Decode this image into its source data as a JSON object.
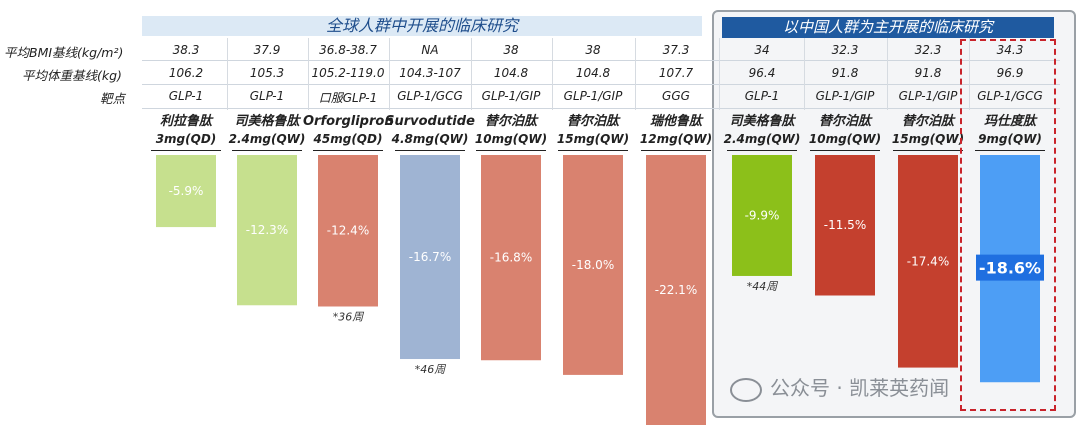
{
  "headers": {
    "global": "全球人群中开展的临床研究",
    "china": "以中国人群为主开展的临床研究"
  },
  "row_labels": {
    "bmi": "平均BMI基线(kg/m²)",
    "weight": "平均体重基线(kg)",
    "target": "靶点"
  },
  "columns": [
    {
      "drug": "利拉鲁肽",
      "dose": "3mg(QD)",
      "bmi": "38.3",
      "weight": "106.2",
      "target": "GLP-1"
    },
    {
      "drug": "司美格鲁肽",
      "dose": "2.4mg(QW)",
      "bmi": "37.9",
      "weight": "105.3",
      "target": "GLP-1"
    },
    {
      "drug": "Orforglipron",
      "dose": "45mg(QD)",
      "bmi": "36.8-38.7",
      "weight": "105.2-119.0",
      "target": "口服GLP-1"
    },
    {
      "drug": "Survodutide",
      "dose": "4.8mg(QW)",
      "bmi": "NA",
      "weight": "104.3-107",
      "target": "GLP-1/GCG"
    },
    {
      "drug": "替尔泊肽",
      "dose": "10mg(QW)",
      "bmi": "38",
      "weight": "104.8",
      "target": "GLP-1/GIP"
    },
    {
      "drug": "替尔泊肽",
      "dose": "15mg(QW)",
      "bmi": "38",
      "weight": "104.8",
      "target": "GLP-1/GIP"
    },
    {
      "drug": "瑞他鲁肽",
      "dose": "12mg(QW)",
      "bmi": "37.3",
      "weight": "107.7",
      "target": "GGG"
    },
    {
      "drug": "司美格鲁肽",
      "dose": "2.4mg(QW)",
      "bmi": "34",
      "weight": "96.4",
      "target": "GLP-1"
    },
    {
      "drug": "替尔泊肽",
      "dose": "10mg(QW)",
      "bmi": "32.3",
      "weight": "91.8",
      "target": "GLP-1/GIP"
    },
    {
      "drug": "替尔泊肽",
      "dose": "15mg(QW)",
      "bmi": "32.3",
      "weight": "91.8",
      "target": "GLP-1/GIP"
    },
    {
      "drug": "玛仕度肽",
      "dose": "9mg(QW)",
      "bmi": "34.3",
      "weight": "96.9",
      "target": "GLP-1/GCG"
    }
  ],
  "chart_data": {
    "type": "bar",
    "categories": [
      "利拉鲁肽 3mg(QD)",
      "司美格鲁肽 2.4mg(QW)",
      "Orforglipron 45mg(QD)",
      "Survodutide 4.8mg(QW)",
      "替尔泊肽 10mg(QW)",
      "替尔泊肽 15mg(QW)",
      "瑞他鲁肽 12mg(QW)",
      "司美格鲁肽 2.4mg(QW)",
      "替尔泊肽 10mg(QW)",
      "替尔泊肽 15mg(QW)",
      "玛仕度肽 9mg(QW)"
    ],
    "values": [
      -5.9,
      -12.3,
      -12.4,
      -16.7,
      -16.8,
      -18.0,
      -22.1,
      -9.9,
      -11.5,
      -17.4,
      -18.6
    ],
    "labels": [
      "-5.9%",
      "-12.3%",
      "-12.4%",
      "-16.7%",
      "-16.8%",
      "-18.0%",
      "-22.1%",
      "-9.9%",
      "-11.5%",
      "-17.4%",
      "-18.6%"
    ],
    "colors": [
      "#c6e08e",
      "#c6e08e",
      "#d9826f",
      "#9fb4d3",
      "#d9826f",
      "#d9826f",
      "#d9826f",
      "#8cc01a",
      "#c4402e",
      "#c4402e",
      "#4d9ef5"
    ],
    "footnotes": [
      "",
      "",
      "*36周",
      "*46周",
      "",
      "",
      "",
      "*44周",
      "",
      "",
      ""
    ],
    "ylim": [
      -24,
      0
    ],
    "highlight_index": 10
  },
  "watermark": "公众号 · 凯莱英药闻"
}
